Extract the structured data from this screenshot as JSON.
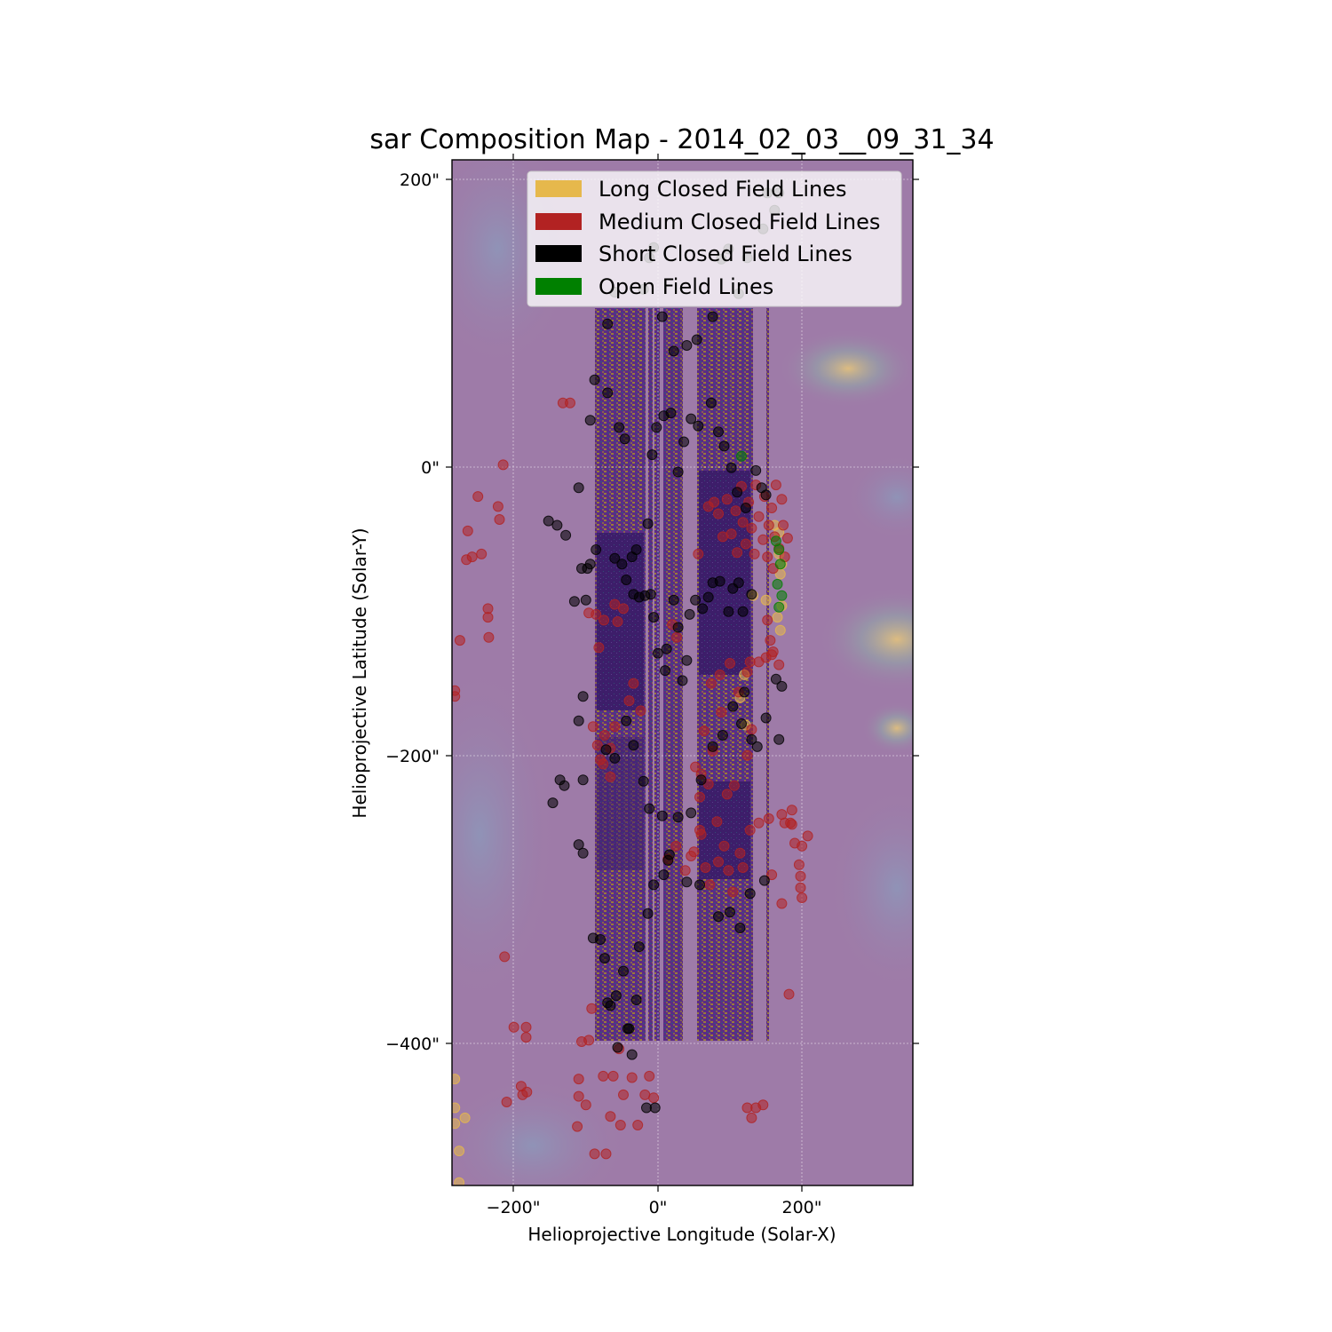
{
  "chart_data": {
    "type": "scatter",
    "title": "sar Composition Map - 2014_02_03__09_31_34",
    "xlabel": "Helioprojective Longitude (Solar-X)",
    "ylabel": "Helioprojective Latitude (Solar-Y)",
    "xlim": [
      -286,
      354
    ],
    "ylim": [
      -499,
      214
    ],
    "x_ticks": [
      -200,
      0,
      200
    ],
    "y_ticks": [
      200,
      0,
      -200,
      -400
    ],
    "x_tick_labels": [
      "−200\"",
      "0\"",
      "200\""
    ],
    "y_tick_labels": [
      "200\"",
      "0\"",
      "−200\"",
      "−400\""
    ],
    "grid": true,
    "legend_position": "top-right",
    "background": "composition map image",
    "series": [
      {
        "name": "Long Closed Field Lines",
        "color": "#e6b84c",
        "points": [
          [
            -282,
            -445
          ],
          [
            -282,
            -456
          ],
          [
            -268,
            -452
          ],
          [
            -276,
            -475
          ],
          [
            -276,
            -497
          ],
          [
            -282,
            -425
          ],
          [
            162,
            -40
          ],
          [
            168,
            -45
          ],
          [
            168,
            -60
          ],
          [
            172,
            -67
          ],
          [
            170,
            -74
          ],
          [
            172,
            -96
          ],
          [
            166,
            -104
          ],
          [
            170,
            -113
          ],
          [
            120,
            -144
          ],
          [
            132,
            -89
          ],
          [
            150,
            -92
          ],
          [
            114,
            -160
          ],
          [
            122,
            -179
          ]
        ]
      },
      {
        "name": "Medium Closed Field Lines",
        "color": "#b22222",
        "points": [
          [
            -282,
            -155
          ],
          [
            -282,
            -159
          ],
          [
            -275,
            -120
          ],
          [
            -266,
            -64
          ],
          [
            -258,
            -62
          ],
          [
            -264,
            -44
          ],
          [
            -250,
            -20
          ],
          [
            -245,
            -60
          ],
          [
            -236,
            -98
          ],
          [
            -236,
            -104
          ],
          [
            -235,
            -118
          ],
          [
            -222,
            -27
          ],
          [
            -220,
            -36
          ],
          [
            -215,
            2
          ],
          [
            -213,
            -340
          ],
          [
            -210,
            -441
          ],
          [
            -200,
            -389
          ],
          [
            -183,
            -389
          ],
          [
            -183,
            -396
          ],
          [
            -188,
            -436
          ],
          [
            -190,
            -430
          ],
          [
            -182,
            -434
          ],
          [
            -132,
            45
          ],
          [
            -122,
            45
          ],
          [
            -112,
            -458
          ],
          [
            -106,
            -399
          ],
          [
            -96,
            -398
          ],
          [
            -92,
            -376
          ],
          [
            -110,
            -425
          ],
          [
            -110,
            -437
          ],
          [
            -100,
            -443
          ],
          [
            -88,
            -477
          ],
          [
            -72,
            -477
          ],
          [
            -76,
            -423
          ],
          [
            -66,
            -451
          ],
          [
            -62,
            -423
          ],
          [
            -54,
            -404
          ],
          [
            -52,
            -457
          ],
          [
            -48,
            -436
          ],
          [
            -36,
            -424
          ],
          [
            -28,
            -457
          ],
          [
            -18,
            -436
          ],
          [
            -12,
            -423
          ],
          [
            -6,
            -438
          ],
          [
            -90,
            -180
          ],
          [
            -84,
            -193
          ],
          [
            -76,
            -206
          ],
          [
            -66,
            -215
          ],
          [
            -74,
            -186
          ],
          [
            -80,
            -203
          ],
          [
            -66,
            -195
          ],
          [
            -60,
            -180
          ],
          [
            -96,
            -101
          ],
          [
            -86,
            -102
          ],
          [
            -82,
            -125
          ],
          [
            -75,
            -106
          ],
          [
            -60,
            -95
          ],
          [
            -48,
            -98
          ],
          [
            -56,
            -107
          ],
          [
            -34,
            -150
          ],
          [
            -40,
            -162
          ],
          [
            -24,
            -169
          ],
          [
            20,
            -109
          ],
          [
            26,
            -118
          ],
          [
            14,
            -272
          ],
          [
            25,
            -263
          ],
          [
            38,
            -280
          ],
          [
            50,
            -267
          ],
          [
            60,
            -255
          ],
          [
            66,
            -278
          ],
          [
            72,
            -290
          ],
          [
            58,
            -252
          ],
          [
            46,
            -270
          ],
          [
            82,
            -246
          ],
          [
            84,
            -274
          ],
          [
            98,
            -280
          ],
          [
            104,
            -295
          ],
          [
            114,
            -268
          ],
          [
            92,
            -263
          ],
          [
            118,
            -278
          ],
          [
            128,
            -252
          ],
          [
            140,
            -247
          ],
          [
            154,
            -244
          ],
          [
            158,
            -283
          ],
          [
            172,
            -241
          ],
          [
            176,
            -247
          ],
          [
            186,
            -248
          ],
          [
            186,
            -238
          ],
          [
            184,
            -247
          ],
          [
            190,
            -261
          ],
          [
            200,
            -263
          ],
          [
            196,
            -276
          ],
          [
            198,
            -284
          ],
          [
            198,
            -292
          ],
          [
            200,
            -299
          ],
          [
            208,
            -256
          ],
          [
            172,
            -303
          ],
          [
            182,
            -366
          ],
          [
            60,
            -213
          ],
          [
            58,
            -229
          ],
          [
            52,
            -208
          ],
          [
            70,
            -220
          ],
          [
            64,
            -183
          ],
          [
            88,
            -170
          ],
          [
            76,
            -197
          ],
          [
            96,
            -227
          ],
          [
            74,
            -150
          ],
          [
            86,
            -144
          ],
          [
            100,
            -136
          ],
          [
            112,
            -156
          ],
          [
            124,
            -142
          ],
          [
            128,
            -135
          ],
          [
            140,
            -135
          ],
          [
            150,
            -132
          ],
          [
            158,
            -130
          ],
          [
            168,
            -137
          ],
          [
            56,
            -60
          ],
          [
            70,
            -27
          ],
          [
            78,
            -24
          ],
          [
            84,
            -32
          ],
          [
            90,
            -48
          ],
          [
            96,
            -22
          ],
          [
            102,
            -46
          ],
          [
            108,
            -30
          ],
          [
            110,
            -59
          ],
          [
            116,
            -13
          ],
          [
            118,
            -38
          ],
          [
            122,
            -53
          ],
          [
            126,
            -24
          ],
          [
            130,
            -42
          ],
          [
            134,
            -60
          ],
          [
            136,
            -12
          ],
          [
            140,
            -34
          ],
          [
            146,
            -50
          ],
          [
            148,
            -20
          ],
          [
            152,
            -62
          ],
          [
            154,
            -40
          ],
          [
            158,
            -28
          ],
          [
            160,
            -70
          ],
          [
            162,
            -48
          ],
          [
            164,
            -12
          ],
          [
            168,
            -56
          ],
          [
            172,
            -22
          ],
          [
            174,
            -40
          ],
          [
            176,
            -62
          ],
          [
            180,
            -49
          ],
          [
            152,
            -106
          ],
          [
            156,
            -120
          ],
          [
            160,
            -128
          ],
          [
            124,
            -445
          ],
          [
            130,
            -452
          ],
          [
            136,
            -445
          ],
          [
            146,
            -443
          ],
          [
            106,
            -221
          ],
          [
            124,
            -200
          ],
          [
            130,
            -182
          ]
        ]
      },
      {
        "name": "Short Closed Field Lines",
        "color": "#000000",
        "points": [
          [
            -152,
            -37
          ],
          [
            -140,
            -40
          ],
          [
            -128,
            -47
          ],
          [
            -110,
            -14
          ],
          [
            -106,
            -70
          ],
          [
            -98,
            -70
          ],
          [
            -116,
            -93
          ],
          [
            -100,
            -92
          ],
          [
            -94,
            -67
          ],
          [
            -86,
            -57
          ],
          [
            -60,
            -63
          ],
          [
            -50,
            -67
          ],
          [
            -44,
            -78
          ],
          [
            -36,
            -62
          ],
          [
            -34,
            -88
          ],
          [
            -26,
            -90
          ],
          [
            -18,
            -89
          ],
          [
            -10,
            -88
          ],
          [
            -6,
            -104
          ],
          [
            0,
            -129
          ],
          [
            12,
            -126
          ],
          [
            10,
            -141
          ],
          [
            22,
            -92
          ],
          [
            28,
            -111
          ],
          [
            34,
            -148
          ],
          [
            40,
            -134
          ],
          [
            44,
            -102
          ],
          [
            52,
            -92
          ],
          [
            62,
            -98
          ],
          [
            70,
            -90
          ],
          [
            76,
            -80
          ],
          [
            86,
            -79
          ],
          [
            98,
            -100
          ],
          [
            104,
            -84
          ],
          [
            112,
            -80
          ],
          [
            118,
            -100
          ],
          [
            130,
            -88
          ],
          [
            -110,
            -262
          ],
          [
            -104,
            -268
          ],
          [
            -90,
            -327
          ],
          [
            -74,
            -341
          ],
          [
            -66,
            -374
          ],
          [
            -56,
            -403
          ],
          [
            -40,
            -390
          ],
          [
            -30,
            -370
          ],
          [
            -26,
            -333
          ],
          [
            -14,
            -310
          ],
          [
            -6,
            -290
          ],
          [
            8,
            -283
          ],
          [
            16,
            -269
          ],
          [
            40,
            -288
          ],
          [
            58,
            -290
          ],
          [
            84,
            -312
          ],
          [
            100,
            -309
          ],
          [
            114,
            -320
          ],
          [
            128,
            -296
          ],
          [
            148,
            -287
          ],
          [
            -136,
            -217
          ],
          [
            -146,
            -233
          ],
          [
            -130,
            -221
          ],
          [
            -104,
            -217
          ],
          [
            -110,
            -176
          ],
          [
            -104,
            -159
          ],
          [
            -72,
            -196
          ],
          [
            -60,
            -202
          ],
          [
            -44,
            -176
          ],
          [
            -34,
            -193
          ],
          [
            -20,
            -218
          ],
          [
            -12,
            -237
          ],
          [
            6,
            -242
          ],
          [
            14,
            -273
          ],
          [
            28,
            -243
          ],
          [
            46,
            -240
          ],
          [
            60,
            -217
          ],
          [
            76,
            -194
          ],
          [
            90,
            -186
          ],
          [
            104,
            -166
          ],
          [
            116,
            -178
          ],
          [
            -94,
            33
          ],
          [
            -88,
            61
          ],
          [
            -70,
            52
          ],
          [
            -54,
            28
          ],
          [
            -46,
            20
          ],
          [
            -30,
            -57
          ],
          [
            -14,
            -39
          ],
          [
            -8,
            9
          ],
          [
            -2,
            28
          ],
          [
            8,
            36
          ],
          [
            18,
            38
          ],
          [
            28,
            -3
          ],
          [
            36,
            18
          ],
          [
            46,
            34
          ],
          [
            56,
            29
          ],
          [
            74,
            45
          ],
          [
            84,
            25
          ],
          [
            92,
            15
          ],
          [
            102,
            0
          ],
          [
            110,
            -17
          ],
          [
            122,
            -28
          ],
          [
            136,
            -2
          ],
          [
            144,
            -14
          ],
          [
            150,
            -19
          ],
          [
            -70,
            100
          ],
          [
            -60,
            122
          ],
          [
            -20,
            124
          ],
          [
            -12,
            146
          ],
          [
            -6,
            153
          ],
          [
            6,
            105
          ],
          [
            22,
            81
          ],
          [
            40,
            85
          ],
          [
            54,
            89
          ],
          [
            76,
            105
          ],
          [
            88,
            145
          ],
          [
            98,
            152
          ],
          [
            112,
            121
          ],
          [
            124,
            146
          ],
          [
            152,
            191
          ],
          [
            146,
            166
          ],
          [
            162,
            179
          ],
          [
            168,
            191
          ],
          [
            172,
            -152
          ],
          [
            168,
            -189
          ],
          [
            164,
            -147
          ],
          [
            150,
            -174
          ],
          [
            138,
            -194
          ],
          [
            130,
            -189
          ],
          [
            120,
            -156
          ],
          [
            -16,
            -445
          ],
          [
            -4,
            -445
          ],
          [
            -70,
            -372
          ],
          [
            -80,
            -328
          ],
          [
            -48,
            -350
          ],
          [
            -58,
            -367
          ],
          [
            -42,
            -390
          ],
          [
            -36,
            -408
          ]
        ]
      },
      {
        "name": "Open Field Lines",
        "color": "#008000",
        "points": [
          [
            116,
            8
          ],
          [
            164,
            -51
          ],
          [
            168,
            -57
          ],
          [
            170,
            -67
          ],
          [
            166,
            -81
          ],
          [
            172,
            -89
          ],
          [
            168,
            -97
          ]
        ]
      }
    ]
  }
}
